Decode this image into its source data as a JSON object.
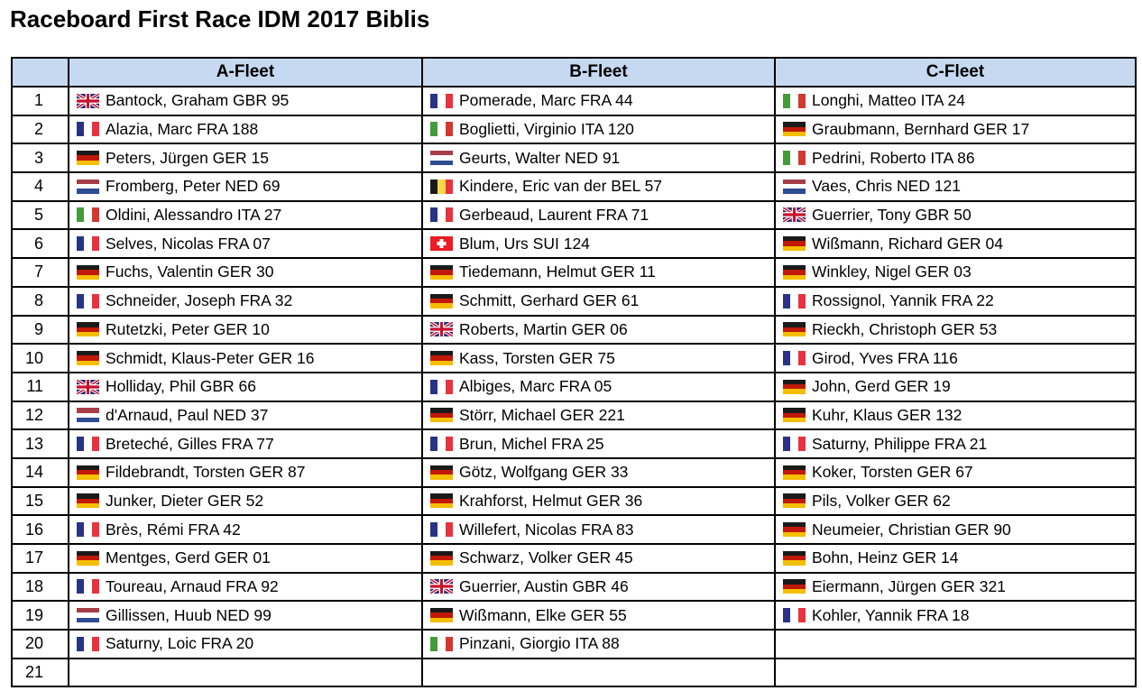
{
  "title": "Raceboard First Race IDM 2017 Biblis",
  "colors": {
    "page_background": "#FFFFFF",
    "header_background": "#C6D9F1",
    "table_border": "#000000",
    "text": "#000000"
  },
  "flags": {
    "GBR": {
      "type": "union-jack",
      "colors": [
        "#2B2A74",
        "#FFFFFF",
        "#C8102E"
      ]
    },
    "FRA": {
      "type": "vertical",
      "colors": [
        "#283386",
        "#FFFFFF",
        "#E8323E"
      ]
    },
    "GER": {
      "type": "horizontal",
      "colors": [
        "#1A1A1A",
        "#C21807",
        "#F5BE00"
      ]
    },
    "NED": {
      "type": "horizontal",
      "colors": [
        "#A63D47",
        "#FFFFFF",
        "#2E4C93"
      ]
    },
    "ITA": {
      "type": "vertical",
      "colors": [
        "#449B3B",
        "#FFFFFF",
        "#D3392F"
      ]
    },
    "BEL": {
      "type": "vertical",
      "colors": [
        "#1A1A1A",
        "#F7D748",
        "#E8323E"
      ]
    },
    "SUI": {
      "type": "white-cross",
      "colors": [
        "#EC1C24",
        "#FFFFFF"
      ]
    }
  },
  "table": {
    "columns": [
      "A-Fleet",
      "B-Fleet",
      "C-Fleet"
    ],
    "rows": [
      {
        "num": "1",
        "cells": [
          {
            "flag": "GBR",
            "text": "Bantock, Graham GBR 95"
          },
          {
            "flag": "FRA",
            "text": "Pomerade, Marc FRA 44"
          },
          {
            "flag": "ITA",
            "text": "Longhi, Matteo ITA 24"
          }
        ]
      },
      {
        "num": "2",
        "cells": [
          {
            "flag": "FRA",
            "text": "Alazia, Marc FRA 188"
          },
          {
            "flag": "ITA",
            "text": "Boglietti, Virginio ITA 120"
          },
          {
            "flag": "GER",
            "text": "Graubmann, Bernhard GER 17"
          }
        ]
      },
      {
        "num": "3",
        "cells": [
          {
            "flag": "GER",
            "text": "Peters, Jürgen GER 15"
          },
          {
            "flag": "NED",
            "text": "Geurts, Walter NED 91"
          },
          {
            "flag": "ITA",
            "text": "Pedrini, Roberto ITA 86"
          }
        ]
      },
      {
        "num": "4",
        "cells": [
          {
            "flag": "NED",
            "text": "Fromberg, Peter NED 69"
          },
          {
            "flag": "BEL",
            "text": "Kindere, Eric van der BEL 57"
          },
          {
            "flag": "NED",
            "text": "Vaes, Chris NED 121"
          }
        ]
      },
      {
        "num": "5",
        "cells": [
          {
            "flag": "ITA",
            "text": "Oldini, Alessandro ITA 27"
          },
          {
            "flag": "FRA",
            "text": "Gerbeaud, Laurent FRA 71"
          },
          {
            "flag": "GBR",
            "text": "Guerrier, Tony GBR 50"
          }
        ]
      },
      {
        "num": "6",
        "cells": [
          {
            "flag": "FRA",
            "text": "Selves, Nicolas FRA 07"
          },
          {
            "flag": "SUI",
            "text": "Blum, Urs SUI 124"
          },
          {
            "flag": "GER",
            "text": "Wißmann, Richard GER 04"
          }
        ]
      },
      {
        "num": "7",
        "cells": [
          {
            "flag": "GER",
            "text": "Fuchs, Valentin GER 30"
          },
          {
            "flag": "GER",
            "text": "Tiedemann, Helmut GER 11"
          },
          {
            "flag": "GER",
            "text": "Winkley, Nigel GER 03"
          }
        ]
      },
      {
        "num": "8",
        "cells": [
          {
            "flag": "FRA",
            "text": "Schneider, Joseph FRA 32"
          },
          {
            "flag": "GER",
            "text": "Schmitt, Gerhard GER 61"
          },
          {
            "flag": "FRA",
            "text": "Rossignol, Yannik FRA 22"
          }
        ]
      },
      {
        "num": "9",
        "cells": [
          {
            "flag": "GER",
            "text": "Rutetzki, Peter GER 10"
          },
          {
            "flag": "GBR",
            "text": "Roberts, Martin GER 06"
          },
          {
            "flag": "GER",
            "text": "Rieckh, Christoph GER 53"
          }
        ]
      },
      {
        "num": "10",
        "cells": [
          {
            "flag": "GER",
            "text": "Schmidt, Klaus-Peter GER 16"
          },
          {
            "flag": "GER",
            "text": "Kass, Torsten GER 75"
          },
          {
            "flag": "FRA",
            "text": "Girod, Yves FRA 116"
          }
        ]
      },
      {
        "num": "11",
        "cells": [
          {
            "flag": "GBR",
            "text": "Holliday, Phil GBR 66"
          },
          {
            "flag": "FRA",
            "text": "Albiges, Marc FRA 05"
          },
          {
            "flag": "GER",
            "text": "John, Gerd GER 19"
          }
        ]
      },
      {
        "num": "12",
        "cells": [
          {
            "flag": "NED",
            "text": "d'Arnaud, Paul NED 37"
          },
          {
            "flag": "GER",
            "text": "Störr, Michael GER 221"
          },
          {
            "flag": "GER",
            "text": "Kuhr, Klaus GER 132"
          }
        ]
      },
      {
        "num": "13",
        "cells": [
          {
            "flag": "FRA",
            "text": "Breteché, Gilles FRA 77"
          },
          {
            "flag": "FRA",
            "text": "Brun, Michel FRA 25"
          },
          {
            "flag": "FRA",
            "text": "Saturny, Philippe FRA 21"
          }
        ]
      },
      {
        "num": "14",
        "cells": [
          {
            "flag": "GER",
            "text": "Fildebrandt, Torsten GER 87"
          },
          {
            "flag": "GER",
            "text": "Götz, Wolfgang GER 33"
          },
          {
            "flag": "GER",
            "text": "Koker, Torsten GER 67"
          }
        ]
      },
      {
        "num": "15",
        "cells": [
          {
            "flag": "GER",
            "text": "Junker, Dieter GER 52"
          },
          {
            "flag": "GER",
            "text": "Krahforst, Helmut GER 36"
          },
          {
            "flag": "GER",
            "text": "Pils, Volker GER 62"
          }
        ]
      },
      {
        "num": "16",
        "cells": [
          {
            "flag": "FRA",
            "text": "Brès, Rémi FRA 42"
          },
          {
            "flag": "FRA",
            "text": "Willefert, Nicolas FRA 83"
          },
          {
            "flag": "GER",
            "text": "Neumeier, Christian GER 90"
          }
        ]
      },
      {
        "num": "17",
        "cells": [
          {
            "flag": "GER",
            "text": "Mentges, Gerd GER 01"
          },
          {
            "flag": "GER",
            "text": "Schwarz, Volker GER 45"
          },
          {
            "flag": "GER",
            "text": "Bohn, Heinz GER 14"
          }
        ]
      },
      {
        "num": "18",
        "cells": [
          {
            "flag": "FRA",
            "text": "Toureau, Arnaud FRA 92"
          },
          {
            "flag": "GBR",
            "text": "Guerrier, Austin GBR 46"
          },
          {
            "flag": "GER",
            "text": "Eiermann, Jürgen GER 321"
          }
        ]
      },
      {
        "num": "19",
        "cells": [
          {
            "flag": "NED",
            "text": "Gillissen, Huub NED 99"
          },
          {
            "flag": "GER",
            "text": "Wißmann, Elke GER 55"
          },
          {
            "flag": "FRA",
            "text": "Kohler, Yannik FRA 18"
          }
        ]
      },
      {
        "num": "20",
        "cells": [
          {
            "flag": "FRA",
            "text": "Saturny, Loic FRA 20"
          },
          {
            "flag": "ITA",
            "text": "Pinzani, Giorgio ITA 88"
          },
          null
        ]
      },
      {
        "num": "21",
        "cells": [
          null,
          null,
          null
        ]
      }
    ]
  }
}
